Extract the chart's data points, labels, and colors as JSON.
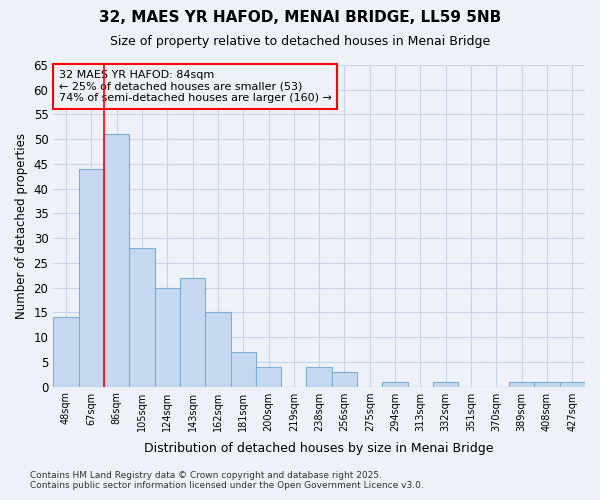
{
  "title": "32, MAES YR HAFOD, MENAI BRIDGE, LL59 5NB",
  "subtitle": "Size of property relative to detached houses in Menai Bridge",
  "xlabel": "Distribution of detached houses by size in Menai Bridge",
  "ylabel": "Number of detached properties",
  "categories": [
    "48sqm",
    "67sqm",
    "86sqm",
    "105sqm",
    "124sqm",
    "143sqm",
    "162sqm",
    "181sqm",
    "200sqm",
    "219sqm",
    "238sqm",
    "256sqm",
    "275sqm",
    "294sqm",
    "313sqm",
    "332sqm",
    "351sqm",
    "370sqm",
    "389sqm",
    "408sqm",
    "427sqm"
  ],
  "values": [
    14,
    44,
    51,
    28,
    20,
    22,
    15,
    7,
    4,
    0,
    4,
    3,
    0,
    1,
    0,
    1,
    0,
    0,
    1,
    1,
    1
  ],
  "bar_color": "#c5d8f0",
  "bar_edge_color": "#7aaed4",
  "grid_color": "#c8d4e8",
  "background_color": "#eef2f8",
  "annotation_line1": "32 MAES YR HAFOD: 84sqm",
  "annotation_line2": "← 25% of detached houses are smaller (53)",
  "annotation_line3": "74% of semi-detached houses are larger (160) →",
  "annotation_box_color": "red",
  "red_line_index": 2,
  "ylim": [
    0,
    65
  ],
  "yticks": [
    0,
    5,
    10,
    15,
    20,
    25,
    30,
    35,
    40,
    45,
    50,
    55,
    60,
    65
  ],
  "footer_line1": "Contains HM Land Registry data © Crown copyright and database right 2025.",
  "footer_line2": "Contains public sector information licensed under the Open Government Licence v3.0."
}
